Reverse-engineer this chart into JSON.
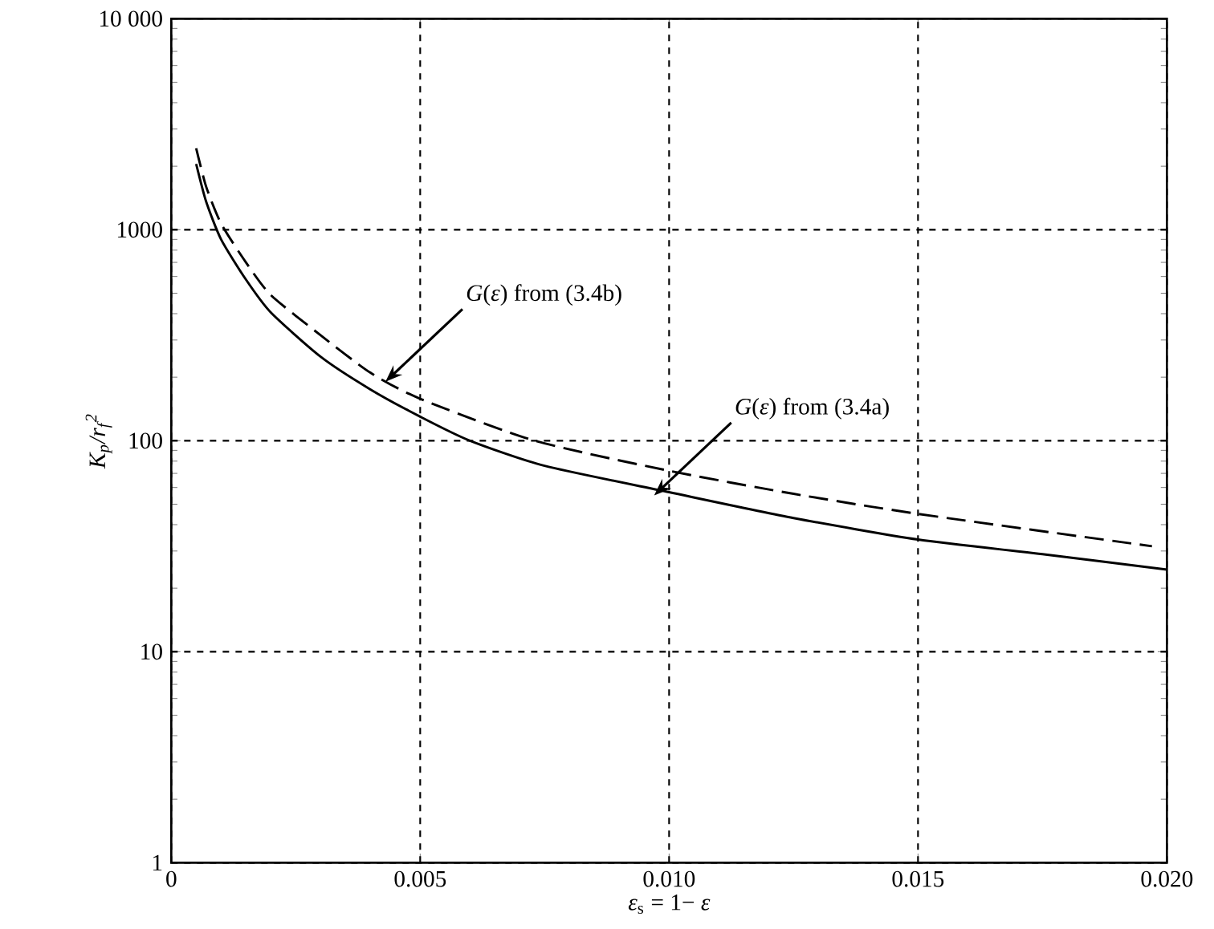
{
  "chart_data": {
    "type": "line",
    "xlabel": "*ε*$_{s}$ = 1− *ε*",
    "ylabel": "K$_{p}$/r$_{f}$$^{2}$",
    "xlim": [
      0,
      0.02
    ],
    "ylim": [
      1,
      10000
    ],
    "log": "y",
    "xticks": [
      0,
      0.005,
      {
        "value": 0.01,
        "label": "0.010"
      },
      0.015,
      {
        "value": 0.02,
        "label": "0.020"
      }
    ],
    "yticks": [
      1,
      10,
      100,
      1000,
      {
        "value": 10000,
        "label": "10 000"
      }
    ],
    "grid": true,
    "series": [
      {
        "color": "#000000",
        "line_style": "solid",
        "x": [
          0.0005,
          0.0007,
          0.001,
          0.0015,
          0.002,
          0.003,
          0.004,
          0.005,
          0.006,
          0.0075,
          0.01,
          0.0125,
          0.015,
          0.0175,
          0.02
        ],
        "values": [
          2050,
          1360,
          900,
          580,
          405,
          250,
          175,
          130,
          100,
          76,
          57,
          43,
          34,
          29,
          24.5
        ]
      },
      {
        "color": "#000000",
        "line_style": "dashed",
        "x": [
          0.0005,
          0.0007,
          0.001,
          0.0015,
          0.002,
          0.003,
          0.004,
          0.005,
          0.0073,
          0.01,
          0.0125,
          0.015,
          0.0197
        ],
        "values": [
          2430,
          1600,
          1070,
          700,
          490,
          316,
          210,
          158,
          100,
          72,
          56,
          45,
          31.6
        ]
      }
    ],
    "annotations": [
      {
        "text": "*G*(*ε*) from (3.4b)",
        "x": 0.0043,
        "y": 190
      },
      {
        "text": "*G*(*ε*) from (3.4a)",
        "x": 0.0097,
        "y": 55
      }
    ]
  }
}
